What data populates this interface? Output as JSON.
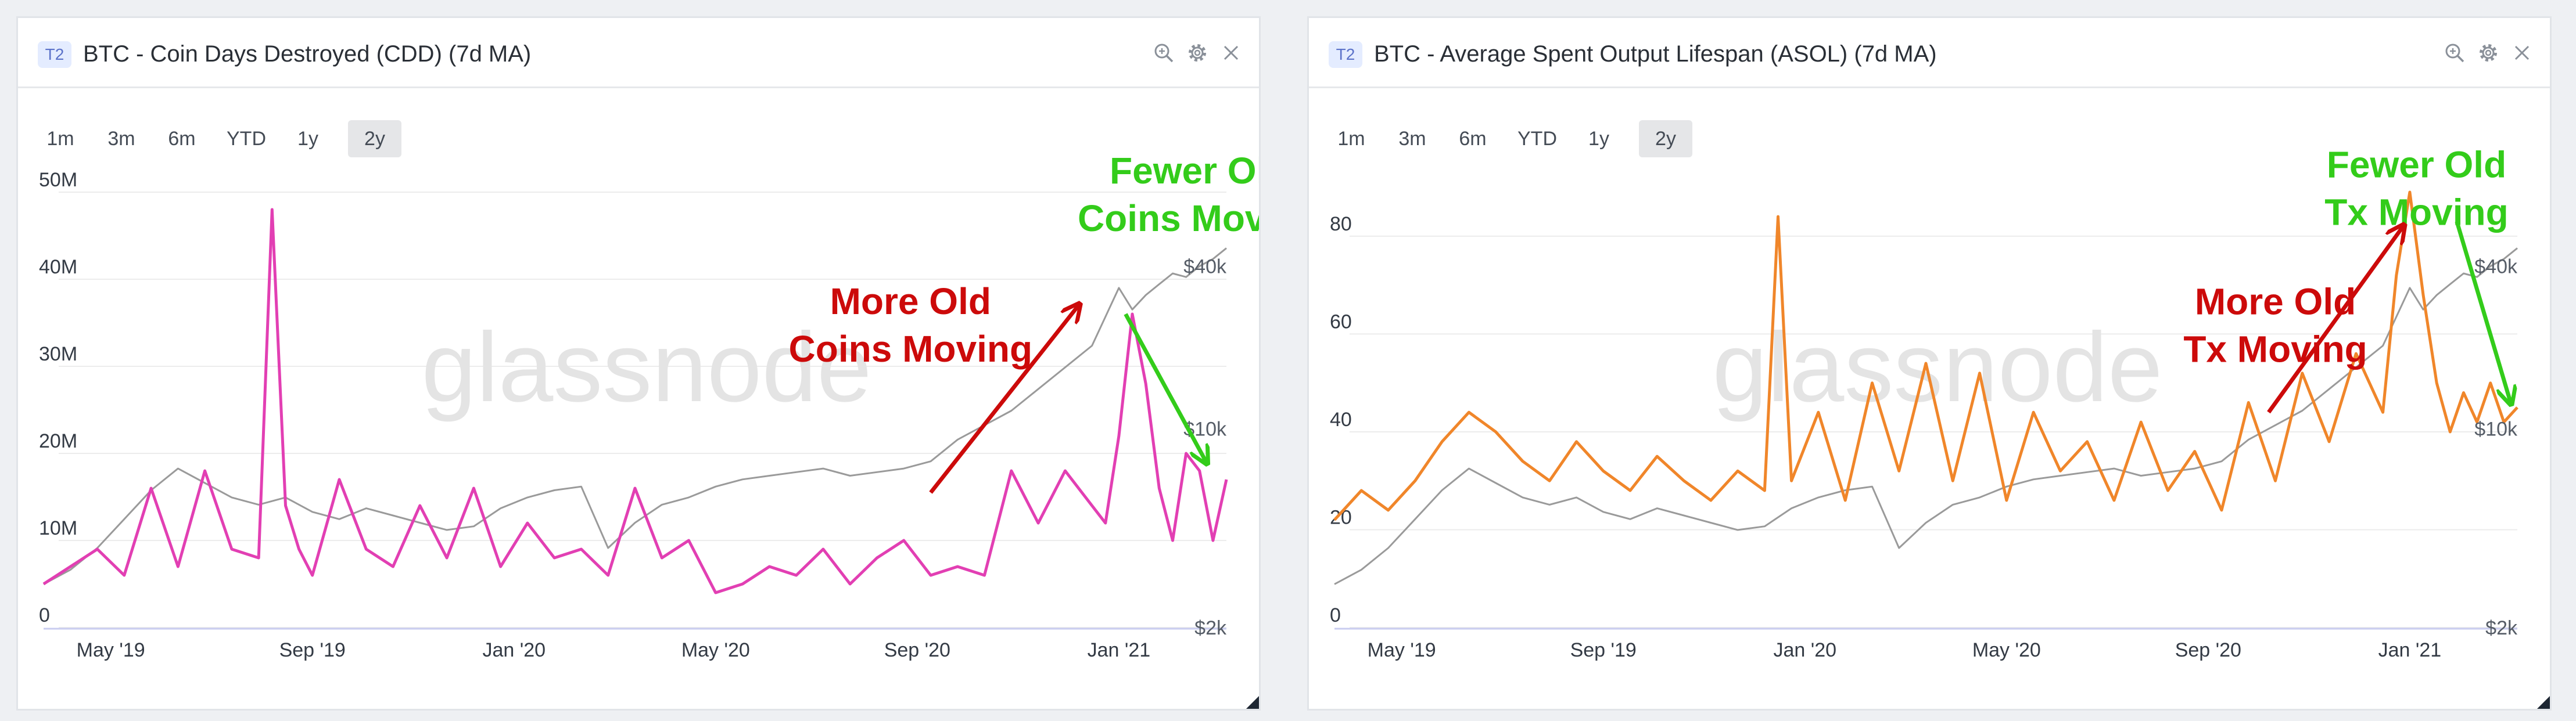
{
  "panels": [
    {
      "badge": "T2",
      "title": "BTC - Coin Days Destroyed (CDD) (7d MA)",
      "ranges": [
        "1m",
        "3m",
        "6m",
        "YTD",
        "1y",
        "2y"
      ],
      "active_range": "2y",
      "watermark": "glassnode"
    },
    {
      "badge": "T2",
      "title": "BTC - Average Spent Output Lifespan (ASOL) (7d MA)",
      "ranges": [
        "1m",
        "3m",
        "6m",
        "YTD",
        "1y",
        "2y"
      ],
      "active_range": "2y",
      "watermark": "glassnode"
    }
  ],
  "colors": {
    "cdd": "#e23fb3",
    "asol": "#f0862a",
    "price": "#9a9a9a",
    "arrow_red": "#cc0a0a",
    "arrow_green": "#33cc1a",
    "watermark": "#e4e4e4"
  },
  "chart_data": [
    {
      "type": "line",
      "title": "BTC - Coin Days Destroyed (CDD) (7d MA)",
      "x_ticks": [
        "May '19",
        "Sep '19",
        "Jan '20",
        "May '20",
        "Sep '20",
        "Jan '21"
      ],
      "x_tick_pos": [
        0.2,
        3.2,
        6.2,
        9.2,
        12.2,
        15.2
      ],
      "x_range": [
        -0.8,
        16.8
      ],
      "y_ticks": [
        "0",
        "10M",
        "20M",
        "30M",
        "40M",
        "50M"
      ],
      "y_tick_values": [
        0,
        10,
        20,
        30,
        40,
        50
      ],
      "ylim": [
        0,
        50
      ],
      "y_unit": "M",
      "right_axis_ticks": [
        "$2k",
        "$10k",
        "$40k"
      ],
      "right_axis_pos": [
        0.0,
        0.55,
        1.0
      ],
      "series": [
        {
          "role": "main",
          "x": [
            -0.8,
            -0.4,
            0,
            0.4,
            0.8,
            1.2,
            1.6,
            2,
            2.4,
            2.6,
            2.8,
            3,
            3.2,
            3.6,
            4,
            4.4,
            4.8,
            5.2,
            5.6,
            6,
            6.4,
            6.8,
            7.2,
            7.6,
            8,
            8.4,
            8.8,
            9.2,
            9.6,
            10,
            10.4,
            10.8,
            11.2,
            11.6,
            12,
            12.4,
            12.8,
            13.2,
            13.6,
            14,
            14.4,
            14.8,
            15,
            15.2,
            15.4,
            15.6,
            15.8,
            16,
            16.2,
            16.4,
            16.6,
            16.8
          ],
          "values": [
            5,
            7,
            9,
            6,
            16,
            7,
            18,
            9,
            8,
            48,
            14,
            9,
            6,
            17,
            9,
            7,
            14,
            8,
            16,
            7,
            12,
            8,
            9,
            6,
            16,
            8,
            10,
            4,
            5,
            7,
            6,
            9,
            5,
            8,
            10,
            6,
            7,
            6,
            18,
            12,
            18,
            14,
            12,
            22,
            36,
            28,
            16,
            10,
            20,
            18,
            10,
            17
          ]
        },
        {
          "role": "price",
          "x": [
            -0.8,
            -0.4,
            0,
            0.4,
            0.8,
            1.2,
            1.6,
            2,
            2.4,
            2.8,
            3.2,
            3.6,
            4,
            4.4,
            4.8,
            5.2,
            5.6,
            6,
            6.4,
            6.8,
            7.2,
            7.6,
            8,
            8.4,
            8.8,
            9.2,
            9.6,
            10,
            10.4,
            10.8,
            11.2,
            11.6,
            12,
            12.4,
            12.8,
            13.2,
            13.6,
            14,
            14.4,
            14.8,
            15,
            15.2,
            15.4,
            15.6,
            15.8,
            16,
            16.2,
            16.4,
            16.6,
            16.8
          ],
          "values": [
            0.12,
            0.16,
            0.22,
            0.3,
            0.38,
            0.44,
            0.4,
            0.36,
            0.34,
            0.36,
            0.32,
            0.3,
            0.33,
            0.31,
            0.29,
            0.27,
            0.28,
            0.33,
            0.36,
            0.38,
            0.39,
            0.22,
            0.29,
            0.34,
            0.36,
            0.39,
            0.41,
            0.42,
            0.43,
            0.44,
            0.42,
            0.43,
            0.44,
            0.46,
            0.52,
            0.56,
            0.6,
            0.66,
            0.72,
            0.78,
            0.86,
            0.94,
            0.88,
            0.92,
            0.95,
            0.98,
            0.97,
            1.0,
            1.02,
            1.05
          ]
        }
      ],
      "annotations": [
        {
          "kind": "text",
          "lines": [
            "Fewer Old",
            "Coins Moving"
          ],
          "color": "green",
          "x": 16.4,
          "y": 51
        },
        {
          "kind": "text",
          "lines": [
            "More Old",
            "Coins Moving"
          ],
          "color": "red",
          "x": 12.1,
          "y": 36
        },
        {
          "kind": "arrow",
          "color": "red",
          "from": [
            12.4,
            15.5
          ],
          "to": [
            14.6,
            37
          ]
        },
        {
          "kind": "arrow",
          "color": "green",
          "from": [
            15.3,
            36
          ],
          "to": [
            16.5,
            19
          ]
        }
      ]
    },
    {
      "type": "line",
      "title": "BTC - Average Spent Output Lifespan (ASOL) (7d MA)",
      "x_ticks": [
        "May '19",
        "Sep '19",
        "Jan '20",
        "May '20",
        "Sep '20",
        "Jan '21"
      ],
      "x_tick_pos": [
        0.2,
        3.2,
        6.2,
        9.2,
        12.2,
        15.2
      ],
      "x_range": [
        -0.8,
        16.8
      ],
      "y_ticks": [
        "0",
        "20",
        "40",
        "60",
        "80"
      ],
      "y_tick_values": [
        0,
        20,
        40,
        60,
        80
      ],
      "ylim": [
        0,
        89
      ],
      "right_axis_ticks": [
        "$2k",
        "$10k",
        "$40k"
      ],
      "right_axis_pos": [
        0.0,
        0.55,
        1.0
      ],
      "series": [
        {
          "role": "main",
          "x": [
            -0.8,
            -0.4,
            0,
            0.4,
            0.8,
            1.2,
            1.6,
            2,
            2.4,
            2.8,
            3.2,
            3.6,
            4,
            4.4,
            4.8,
            5.2,
            5.6,
            5.8,
            6,
            6.4,
            6.8,
            7.2,
            7.6,
            8,
            8.4,
            8.8,
            9.2,
            9.6,
            10,
            10.4,
            10.8,
            11.2,
            11.6,
            12,
            12.4,
            12.8,
            13.2,
            13.6,
            14,
            14.4,
            14.8,
            15,
            15.2,
            15.4,
            15.6,
            15.8,
            16,
            16.2,
            16.4,
            16.6,
            16.8
          ],
          "values": [
            22,
            28,
            24,
            30,
            38,
            44,
            40,
            34,
            30,
            38,
            32,
            28,
            35,
            30,
            26,
            32,
            28,
            84,
            30,
            44,
            26,
            50,
            32,
            54,
            30,
            52,
            26,
            44,
            32,
            38,
            26,
            42,
            28,
            36,
            24,
            46,
            30,
            52,
            38,
            56,
            44,
            72,
            89,
            68,
            50,
            40,
            48,
            42,
            50,
            42,
            45
          ]
        },
        {
          "role": "price",
          "x": [
            -0.8,
            -0.4,
            0,
            0.4,
            0.8,
            1.2,
            1.6,
            2,
            2.4,
            2.8,
            3.2,
            3.6,
            4,
            4.4,
            4.8,
            5.2,
            5.6,
            6,
            6.4,
            6.8,
            7.2,
            7.6,
            8,
            8.4,
            8.8,
            9.2,
            9.6,
            10,
            10.4,
            10.8,
            11.2,
            11.6,
            12,
            12.4,
            12.8,
            13.2,
            13.6,
            14,
            14.4,
            14.8,
            15,
            15.2,
            15.4,
            15.6,
            15.8,
            16,
            16.2,
            16.4,
            16.6,
            16.8
          ],
          "values": [
            0.12,
            0.16,
            0.22,
            0.3,
            0.38,
            0.44,
            0.4,
            0.36,
            0.34,
            0.36,
            0.32,
            0.3,
            0.33,
            0.31,
            0.29,
            0.27,
            0.28,
            0.33,
            0.36,
            0.38,
            0.39,
            0.22,
            0.29,
            0.34,
            0.36,
            0.39,
            0.41,
            0.42,
            0.43,
            0.44,
            0.42,
            0.43,
            0.44,
            0.46,
            0.52,
            0.56,
            0.6,
            0.66,
            0.72,
            0.78,
            0.86,
            0.94,
            0.88,
            0.92,
            0.95,
            0.98,
            0.97,
            1.0,
            1.02,
            1.05
          ]
        }
      ],
      "annotations": [
        {
          "kind": "text",
          "lines": [
            "Fewer Old",
            "Tx Moving"
          ],
          "color": "green",
          "x": 15.3,
          "y": 92
        },
        {
          "kind": "text",
          "lines": [
            "More Old",
            "Tx Moving"
          ],
          "color": "red",
          "x": 13.2,
          "y": 64
        },
        {
          "kind": "arrow",
          "color": "red",
          "from": [
            13.1,
            44
          ],
          "to": [
            15.1,
            82
          ]
        },
        {
          "kind": "arrow",
          "color": "green",
          "from": [
            15.9,
            83
          ],
          "to": [
            16.7,
            46
          ]
        }
      ]
    }
  ]
}
